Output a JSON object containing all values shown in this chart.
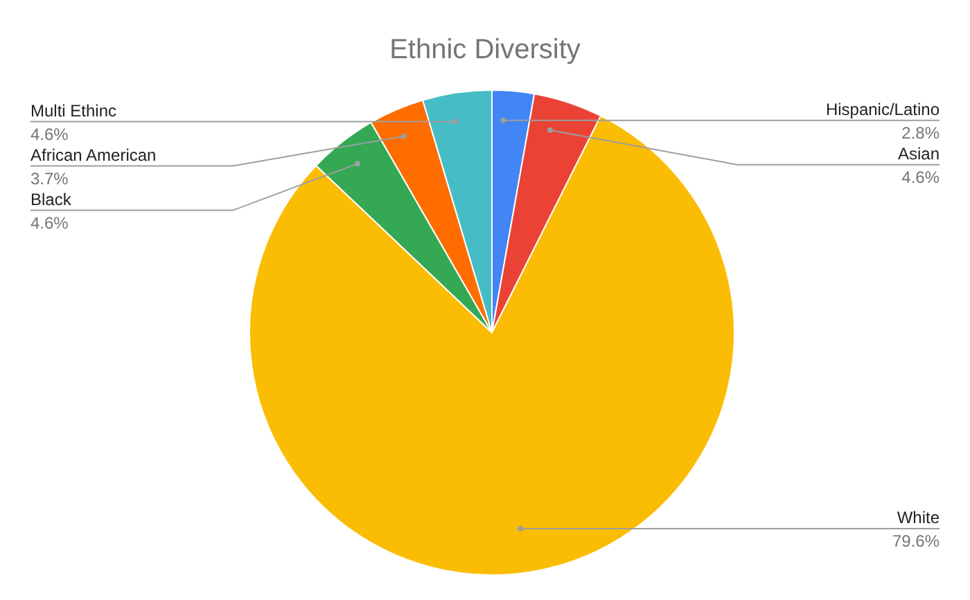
{
  "chart_data": {
    "type": "pie",
    "title": "Ethnic Diversity",
    "categories": [
      "Hispanic/Latino",
      "Asian",
      "White",
      "Black",
      "African American",
      "Multi Ethinc"
    ],
    "values": [
      2.8,
      4.6,
      79.6,
      4.6,
      3.7,
      4.6
    ],
    "value_labels": [
      "2.8%",
      "4.6%",
      "79.6%",
      "4.6%",
      "3.7%",
      "4.6%"
    ],
    "colors": [
      "#4285f4",
      "#ea4335",
      "#fbbc04",
      "#34a853",
      "#ff6d01",
      "#46bdc6"
    ],
    "legend": false
  }
}
